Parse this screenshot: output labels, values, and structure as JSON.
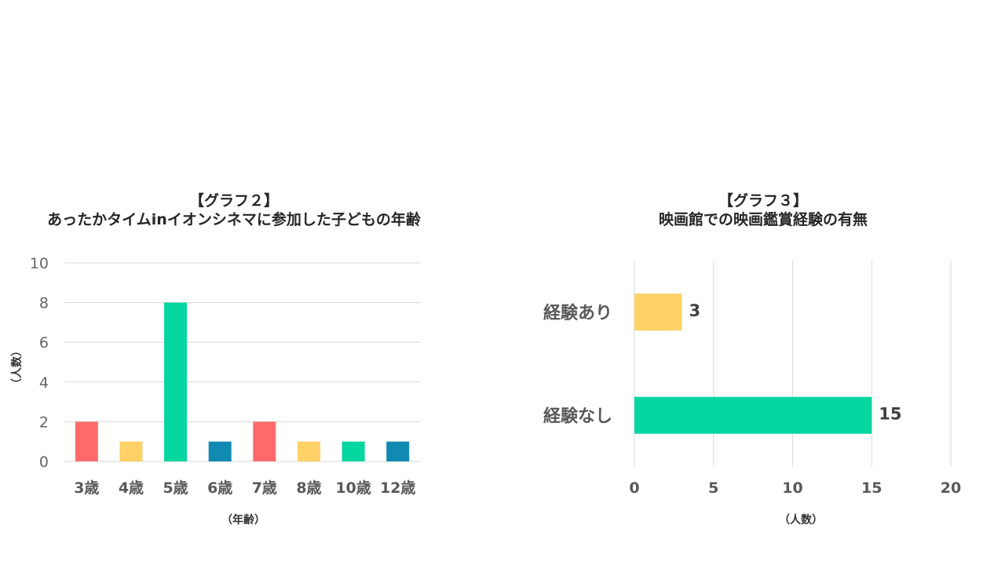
{
  "chart_data": [
    {
      "type": "bar",
      "title_line1": "【グラフ２】",
      "title_line2": "あったかタイムinイオンシネマに参加した子どもの年齢",
      "xlabel": "（年齢）",
      "ylabel": "（人数）",
      "categories": [
        "3歳",
        "4歳",
        "5歳",
        "6歳",
        "7歳",
        "8歳",
        "10歳",
        "12歳"
      ],
      "values": [
        2,
        1,
        8,
        1,
        2,
        1,
        1,
        1
      ],
      "colors": [
        "#ff6b6b",
        "#ffd166",
        "#06d6a0",
        "#118ab2",
        "#ff6b6b",
        "#ffd166",
        "#06d6a0",
        "#118ab2"
      ],
      "ylim": [
        0,
        10
      ],
      "yticks": [
        "0",
        "2",
        "4",
        "6",
        "8",
        "10"
      ],
      "grid": true
    },
    {
      "type": "bar",
      "orientation": "horizontal",
      "title_line1": "【グラフ３】",
      "title_line2": "映画館での映画鑑賞経験の有無",
      "xlabel": "（人数）",
      "categories": [
        "経験あり",
        "経験なし"
      ],
      "values": [
        3,
        15
      ],
      "value_labels": [
        "3",
        "15"
      ],
      "colors": [
        "#ffd166",
        "#06d6a0"
      ],
      "xlim": [
        0,
        20
      ],
      "xticks": [
        "0",
        "5",
        "10",
        "15",
        "20"
      ],
      "grid": true
    }
  ]
}
